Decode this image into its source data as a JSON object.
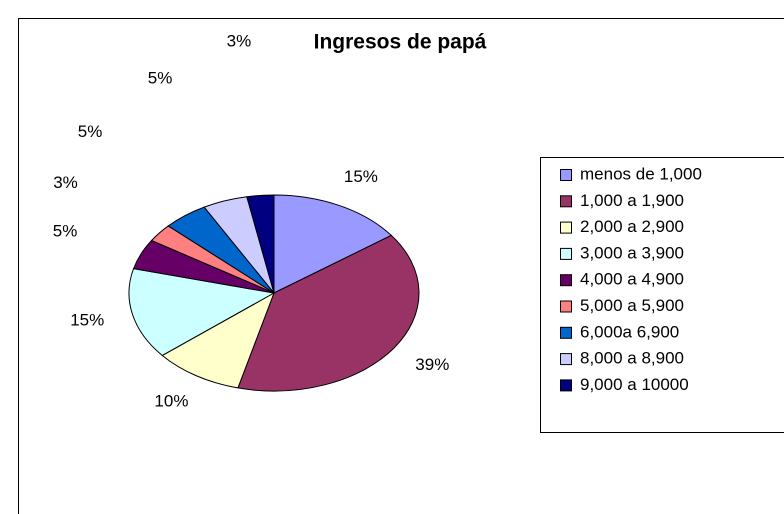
{
  "chart_data": {
    "type": "pie",
    "title": "Ingresos de papá",
    "categories": [
      "menos de 1,000",
      "1,000 a 1,900",
      "2,000 a 2,900",
      "3,000 a 3,900",
      "4,000 a 4,900",
      "5,000 a 5,900",
      "6,000a 6,900",
      "8,000 a 8,900",
      "9,000 a 10000"
    ],
    "values": [
      15,
      39,
      10,
      15,
      5,
      3,
      5,
      5,
      3
    ],
    "value_labels": [
      "15%",
      "39%",
      "10%",
      "15%",
      "5%",
      "3%",
      "5%",
      "5%",
      "3%"
    ],
    "colors": [
      "#9999ff",
      "#993366",
      "#ffffcc",
      "#ccffff",
      "#660066",
      "#ff8080",
      "#0066cc",
      "#ccccff",
      "#000080"
    ],
    "legend": "right"
  }
}
